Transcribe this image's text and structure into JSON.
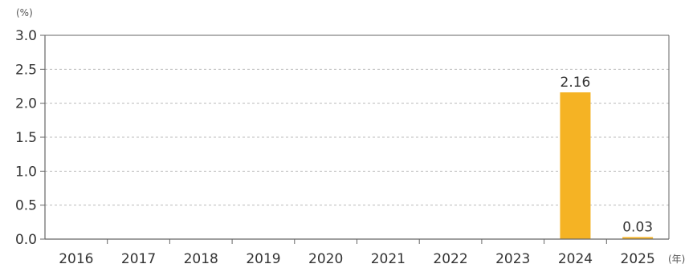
{
  "chart_data": {
    "type": "bar",
    "categories": [
      "2016",
      "2017",
      "2018",
      "2019",
      "2020",
      "2021",
      "2022",
      "2023",
      "2024",
      "2025"
    ],
    "values": [
      null,
      null,
      null,
      null,
      null,
      null,
      null,
      null,
      2.16,
      0.03
    ],
    "data_labels": [
      "",
      "",
      "",
      "",
      "",
      "",
      "",
      "",
      "2.16",
      "0.03"
    ],
    "y_ticks": [
      "0.0",
      "0.5",
      "1.0",
      "1.5",
      "2.0",
      "2.5",
      "3.0"
    ],
    "ylim": [
      0,
      3.0
    ],
    "y_unit": "(%)",
    "x_unit": "(年)",
    "grid": true,
    "grid_style": "dashed horizontal",
    "bar_color": "#F5B324",
    "axis_color": "#666666",
    "grid_color": "#BBBBBB",
    "legend": "none"
  }
}
